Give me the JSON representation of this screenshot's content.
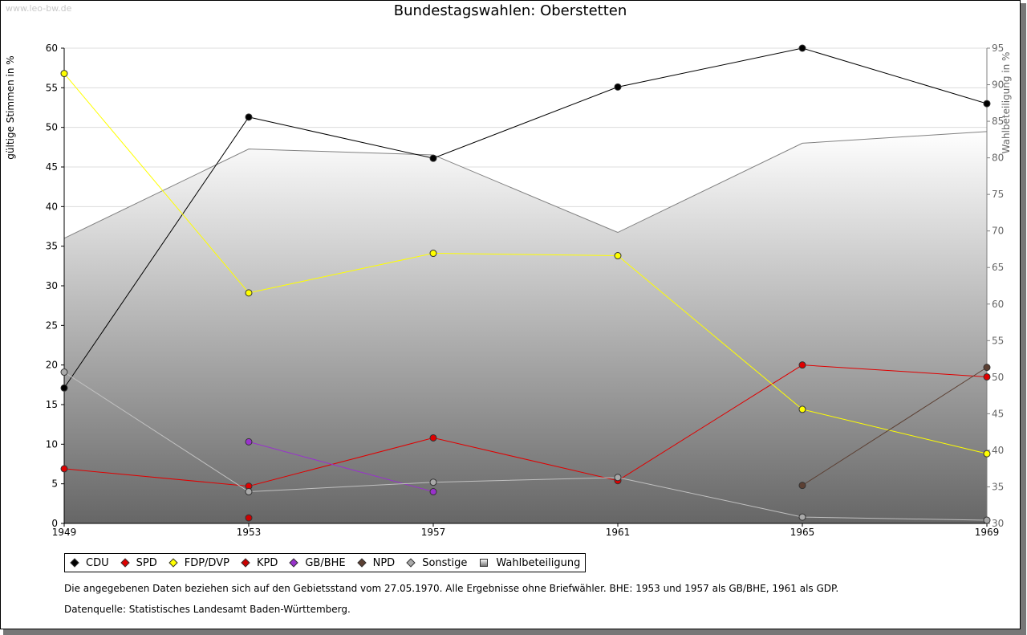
{
  "watermark": "www.leo-bw.de",
  "chart_data": {
    "type": "line",
    "title": "Bundestagswahlen: Oberstetten",
    "ylabel": "gültige Stimmen in %",
    "y2label": "Wahlbeteiligung in %",
    "ylim": [
      0,
      60
    ],
    "y2lim": [
      30,
      95
    ],
    "x": [
      1949,
      1953,
      1957,
      1961,
      1965,
      1969
    ],
    "yticks": [
      0,
      5,
      10,
      15,
      20,
      25,
      30,
      35,
      40,
      45,
      50,
      55,
      60
    ],
    "y2ticks": [
      30,
      35,
      40,
      45,
      50,
      55,
      60,
      65,
      70,
      75,
      80,
      85,
      90,
      95
    ],
    "grid": true,
    "legend_position": "bottom",
    "series": [
      {
        "name": "CDU",
        "color": "#000000",
        "marker": "#000000",
        "values": [
          17.1,
          51.3,
          46.1,
          55.1,
          60.0,
          53.0
        ]
      },
      {
        "name": "SPD",
        "color": "#e00000",
        "marker": "#e00000",
        "values": [
          6.9,
          4.7,
          10.8,
          5.4,
          20.0,
          18.5
        ]
      },
      {
        "name": "FDP/DVP",
        "color": "#ffff00",
        "marker": "#ffff00",
        "values": [
          56.8,
          29.1,
          34.1,
          33.8,
          14.4,
          8.8
        ]
      },
      {
        "name": "KPD",
        "color": "#cc0000",
        "marker": "#cc0000",
        "values": [
          null,
          0.7,
          null,
          null,
          null,
          null
        ]
      },
      {
        "name": "GB/BHE",
        "color": "#9932cc",
        "marker": "#9932cc",
        "values": [
          null,
          10.3,
          4.0,
          null,
          null,
          null
        ]
      },
      {
        "name": "NPD",
        "color": "#5c4033",
        "marker": "#5c4033",
        "values": [
          null,
          null,
          null,
          null,
          4.8,
          19.7
        ]
      },
      {
        "name": "Sonstige",
        "color": "#c0c0c0",
        "marker": "#a9a9a9",
        "values": [
          19.1,
          4.0,
          5.2,
          5.8,
          0.8,
          0.4
        ]
      }
    ],
    "area_series": {
      "name": "Wahlbeteiligung",
      "axis": "right",
      "color": "#808080",
      "values": [
        69.0,
        81.2,
        80.4,
        69.8,
        82.0,
        83.6
      ]
    }
  },
  "notes": [
    "Die angegebenen Daten beziehen sich auf den Gebietsstand vom 27.05.1970. Alle Ergebnisse ohne Briefwähler. BHE: 1953 und 1957 als GB/BHE, 1961 als GDP.",
    "Datenquelle: Statistisches Landesamt Baden-Württemberg."
  ]
}
